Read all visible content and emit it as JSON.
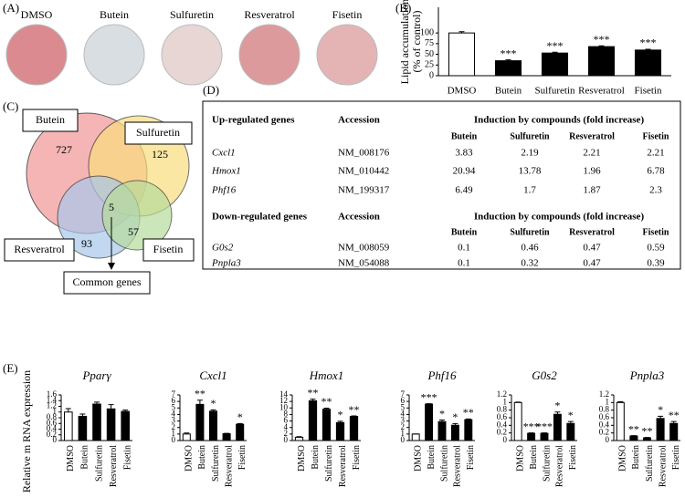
{
  "panel_labels": [
    "(A)",
    "(B)",
    "(C)",
    "(D)",
    "(E)"
  ],
  "panel_a": {
    "dishes": [
      "DMSO",
      "Butein",
      "Sulfuretin",
      "Resveratrol",
      "Fisetin"
    ]
  },
  "venn": {
    "sets": [
      "Butein",
      "Sulfuretin",
      "Resveratrol",
      "Fisetin"
    ],
    "counts": [
      727,
      125,
      93,
      57,
      5
    ],
    "common_label": "Common genes"
  },
  "table": {
    "sections": [
      {
        "header": [
          "Up-regulated genes",
          "Accession",
          "Induction by compounds (fold increase)"
        ],
        "columns": [
          "Butein",
          "Sulfuretin",
          "Resveratrol",
          "Fisetin"
        ],
        "rows": [
          [
            "Cxcl1",
            "NM_008176",
            3.83,
            2.19,
            2.21,
            2.21
          ],
          [
            "Hmox1",
            "NM_010442",
            20.94,
            13.78,
            1.96,
            6.78
          ],
          [
            "Phf16",
            "NM_199317",
            6.49,
            1.7,
            1.87,
            2.3
          ]
        ]
      },
      {
        "header": [
          "Down-regulated genes",
          "Accession",
          "Induction by compounds (fold increase)"
        ],
        "columns": [
          "Butein",
          "Sulfuretin",
          "Resveratrol",
          "Fisetin"
        ],
        "rows": [
          [
            "G0s2",
            "NM_008059",
            0.1,
            0.46,
            0.47,
            0.59
          ],
          [
            "Pnpla3",
            "NM_054088",
            0.1,
            0.32,
            0.47,
            0.39
          ]
        ]
      }
    ]
  },
  "chart_data": [
    {
      "type": "bar",
      "ylabel": [
        "Lipid accumulation",
        "(% of control)"
      ],
      "categories": [
        "DMSO",
        "Butein",
        "Sulfuretin",
        "Resveratrol",
        "Fisetin"
      ],
      "values": [
        100,
        35,
        53,
        68,
        60
      ],
      "errors": [
        3,
        2,
        2,
        2,
        2
      ],
      "annotations": [
        null,
        "***",
        "***",
        "***",
        "***"
      ],
      "colors": [
        "#ffffff",
        "#000000",
        "#000000",
        "#000000",
        "#000000"
      ],
      "ylim": [
        0,
        160
      ],
      "yticks": [
        0,
        25,
        50,
        75,
        100
      ]
    },
    {
      "type": "bar",
      "title": "Pparγ",
      "ylabel": [
        "Relative m RNA expression"
      ],
      "categories": [
        "DMSO",
        "Butein",
        "Sulfuretin",
        "Resveratrol",
        "Fisetin"
      ],
      "values": [
        1.0,
        0.85,
        1.28,
        1.11,
        1.02
      ],
      "errors": [
        0.12,
        0.08,
        0.07,
        0.15,
        0.05
      ],
      "annotations": [
        null,
        null,
        null,
        null,
        null
      ],
      "colors": [
        "#ffffff",
        "#000000",
        "#000000",
        "#000000",
        "#000000"
      ],
      "ylim": [
        0,
        1.6
      ],
      "yticks": [
        0,
        0.2,
        0.4,
        0.6,
        0.8,
        1,
        1.2,
        1.4,
        1.6
      ]
    },
    {
      "type": "bar",
      "title": "Cxcl1",
      "categories": [
        "DMSO",
        "Butein",
        "Sulfuretin",
        "Resveratrol",
        "Fisetin"
      ],
      "values": [
        1.0,
        5.55,
        4.5,
        1.05,
        2.5
      ],
      "errors": [
        0.15,
        0.65,
        0.2,
        0.05,
        0.1
      ],
      "annotations": [
        null,
        "**",
        "*",
        null,
        "*"
      ],
      "colors": [
        "#ffffff",
        "#000000",
        "#000000",
        "#000000",
        "#000000"
      ],
      "ylim": [
        0,
        7
      ],
      "yticks": [
        0,
        1,
        2,
        3,
        4,
        5,
        6,
        7
      ]
    },
    {
      "type": "bar",
      "title": "Hmox1",
      "categories": [
        "DMSO",
        "Butein",
        "Sulfuretin",
        "Resveratrol",
        "Fisetin"
      ],
      "values": [
        1.0,
        12.2,
        9.6,
        5.5,
        7.4
      ],
      "errors": [
        0.2,
        0.5,
        0.35,
        0.4,
        0.15
      ],
      "annotations": [
        null,
        "**",
        "**",
        "*",
        "**"
      ],
      "colors": [
        "#ffffff",
        "#000000",
        "#000000",
        "#000000",
        "#000000"
      ],
      "ylim": [
        0,
        14
      ],
      "yticks": [
        0,
        2,
        4,
        6,
        8,
        10,
        12,
        14
      ]
    },
    {
      "type": "bar",
      "title": "Phf16",
      "categories": [
        "DMSO",
        "Butein",
        "Sulfuretin",
        "Resveratrol",
        "Fisetin"
      ],
      "values": [
        1.0,
        5.6,
        2.9,
        2.35,
        3.2
      ],
      "errors": [
        0.0,
        0.05,
        0.25,
        0.25,
        0.1
      ],
      "annotations": [
        null,
        "***",
        "*",
        "*",
        "**"
      ],
      "colors": [
        "#ffffff",
        "#000000",
        "#000000",
        "#000000",
        "#000000"
      ],
      "ylim": [
        0,
        7
      ],
      "yticks": [
        0,
        1,
        2,
        3,
        4,
        5,
        6,
        7
      ]
    },
    {
      "type": "bar",
      "title": "G0s2",
      "categories": [
        "DMSO",
        "Butein",
        "Sulfuretin",
        "Resveratrol",
        "Fisetin"
      ],
      "values": [
        1.0,
        0.19,
        0.19,
        0.69,
        0.45
      ],
      "errors": [
        0.01,
        0.01,
        0.01,
        0.06,
        0.05
      ],
      "annotations": [
        null,
        "***",
        "***",
        "*",
        "*"
      ],
      "colors": [
        "#ffffff",
        "#000000",
        "#000000",
        "#000000",
        "#000000"
      ],
      "ylim": [
        0,
        1.2
      ],
      "yticks": [
        0,
        0.2,
        0.4,
        0.6,
        0.8,
        1,
        1.2
      ]
    },
    {
      "type": "bar",
      "title": "Pnpla3",
      "categories": [
        "DMSO",
        "Butein",
        "Sulfuretin",
        "Resveratrol",
        "Fisetin"
      ],
      "values": [
        1.0,
        0.12,
        0.07,
        0.58,
        0.45
      ],
      "errors": [
        0.02,
        0.01,
        0.01,
        0.06,
        0.05
      ],
      "annotations": [
        null,
        "**",
        "**",
        "*",
        "**"
      ],
      "colors": [
        "#ffffff",
        "#000000",
        "#000000",
        "#000000",
        "#000000"
      ],
      "ylim": [
        0,
        1.2
      ],
      "yticks": [
        0,
        0.2,
        0.4,
        0.6,
        0.8,
        1,
        1.2
      ]
    }
  ]
}
